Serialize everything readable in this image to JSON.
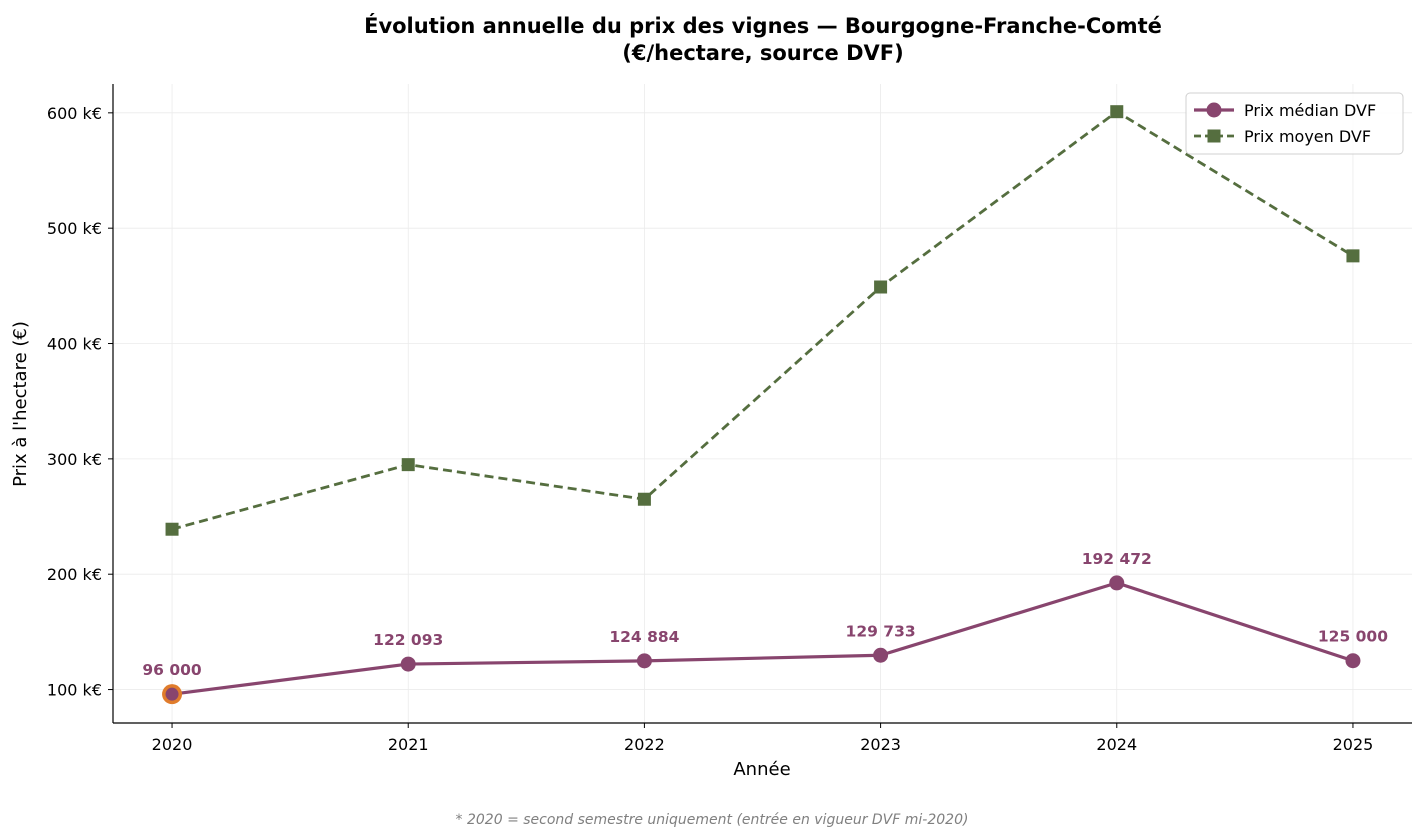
{
  "chart_data": {
    "type": "line",
    "title_line1": "Évolution annuelle du prix des vignes — Bourgogne-Franche-Comté",
    "title_line2": "(€/hectare, source DVF)",
    "xlabel": "Année",
    "ylabel": "Prix à l'hectare (€)",
    "x": [
      2020,
      2021,
      2022,
      2023,
      2024,
      2025
    ],
    "x_tick_labels": [
      "2020",
      "2021",
      "2022",
      "2023",
      "2024",
      "2025"
    ],
    "xlim": [
      2019.75,
      2025.25
    ],
    "ylim": [
      71000,
      625000
    ],
    "y_ticks": [
      100000,
      200000,
      300000,
      400000,
      500000,
      600000
    ],
    "y_tick_labels": [
      "100 k€",
      "200 k€",
      "300 k€",
      "400 k€",
      "500 k€",
      "600 k€"
    ],
    "grid": true,
    "legend_position": "top-right",
    "series": [
      {
        "name": "Prix médian DVF",
        "values": [
          96000,
          122093,
          124884,
          129733,
          192472,
          125000
        ],
        "labels": [
          "96 000",
          "122 093",
          "124 884",
          "129 733",
          "192 472",
          "125 000"
        ],
        "color": "#88456e",
        "marker": "circle",
        "line_style": "solid",
        "highlight_index": 0,
        "highlight_color": "#e07c2c"
      },
      {
        "name": "Prix moyen DVF",
        "values": [
          239000,
          295000,
          265000,
          449000,
          601000,
          476000
        ],
        "color": "#556e3f",
        "marker": "square",
        "line_style": "dashed"
      }
    ],
    "footnote": "* 2020 = second semestre uniquement (entrée en vigueur DVF mi-2020)"
  }
}
